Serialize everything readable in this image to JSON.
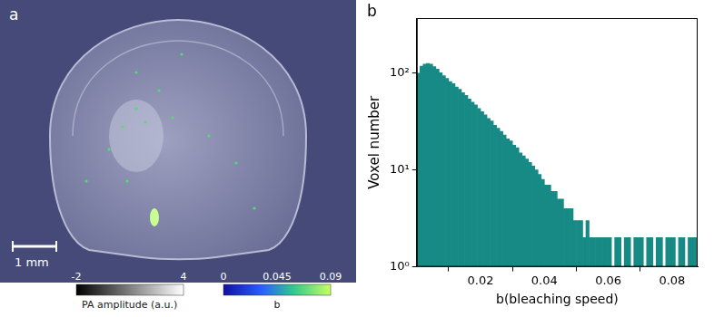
{
  "image_panel": {
    "panel_label": "a",
    "scale_bar": "1 mm",
    "colorbars": [
      {
        "label": "PA amplitude (a.u.)",
        "range": [
          -2,
          4
        ],
        "ticks": [
          -2,
          4
        ]
      },
      {
        "label": "b",
        "range": [
          0,
          0.09
        ],
        "ticks": [
          0,
          0.045,
          0.09
        ]
      }
    ]
  },
  "chart_data": {
    "type": "histogram",
    "panel_label": "b",
    "x_label": "b(bleaching speed)",
    "y_label": "Voxel number",
    "bins": [
      0,
      0.001,
      0.002,
      0.003,
      0.004,
      0.005,
      0.006,
      0.007,
      0.008,
      0.009,
      0.01,
      0.011,
      0.012,
      0.013,
      0.014,
      0.015,
      0.016,
      0.017,
      0.018,
      0.019,
      0.02,
      0.021,
      0.022,
      0.023,
      0.024,
      0.025,
      0.026,
      0.027,
      0.028,
      0.029,
      0.03,
      0.031,
      0.032,
      0.033,
      0.034,
      0.035,
      0.036,
      0.037,
      0.038,
      0.039,
      0.04,
      0.041,
      0.042,
      0.043,
      0.044,
      0.045,
      0.046,
      0.047,
      0.048,
      0.049,
      0.05,
      0.051,
      0.052,
      0.053,
      0.054,
      0.055,
      0.056,
      0.057,
      0.058,
      0.059,
      0.06,
      0.061,
      0.062,
      0.063,
      0.064,
      0.065,
      0.066,
      0.067,
      0.068,
      0.069,
      0.07,
      0.071,
      0.072,
      0.073,
      0.074,
      0.075,
      0.076,
      0.077,
      0.078,
      0.079,
      0.08,
      0.081,
      0.082,
      0.083,
      0.084,
      0.085,
      0.086,
      0.087,
      0.088
    ],
    "values": [
      100,
      118,
      124,
      126,
      124,
      117,
      110,
      101,
      94,
      88,
      82,
      78,
      72,
      68,
      63,
      59,
      54,
      50,
      47,
      43,
      40,
      37,
      34,
      32,
      29,
      27,
      25,
      23,
      21,
      20,
      18,
      17,
      15,
      14,
      13,
      12,
      11,
      10,
      9,
      8,
      7,
      7,
      6,
      6,
      5,
      5,
      4,
      4,
      4,
      3,
      3,
      3,
      2,
      3,
      2,
      2,
      2,
      2,
      2,
      2,
      2,
      1,
      2,
      2,
      1,
      2,
      2,
      1,
      2,
      2,
      2,
      1,
      2,
      2,
      1,
      2,
      2,
      1,
      2,
      2,
      2,
      1,
      2,
      2,
      1,
      2,
      2,
      2
    ],
    "color": "#178a85",
    "xlim": [
      0,
      0.088
    ],
    "xticks": [
      0.02,
      0.04,
      0.06,
      0.08
    ],
    "ylim": [
      1,
      370
    ],
    "yticks": [
      {
        "value": 1,
        "label": "10⁰"
      },
      {
        "value": 10,
        "label": "10¹"
      },
      {
        "value": 100,
        "label": "10²"
      }
    ],
    "log": "y",
    "grid": false
  }
}
